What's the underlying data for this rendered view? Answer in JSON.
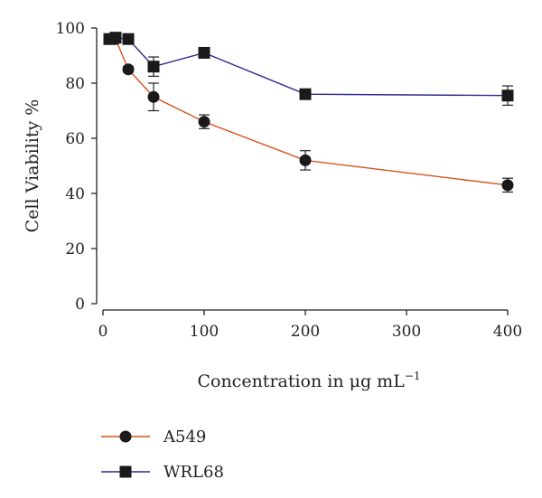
{
  "chart_data": {
    "type": "line",
    "title": "",
    "xlabel": "Concentration in μg mL",
    "xlabel_superscript": "−1",
    "ylabel": "Cell Viability %",
    "xlim": [
      0,
      400
    ],
    "ylim": [
      0,
      100
    ],
    "x_ticks": [
      "0",
      "100",
      "200",
      "300",
      "400"
    ],
    "y_ticks": [
      "0",
      "20",
      "40",
      "60",
      "80",
      "100"
    ],
    "grid": false,
    "legend_position": "bottom-left",
    "series": [
      {
        "name": "A549",
        "color": "#d9531e",
        "marker": "circle",
        "x": [
          6.25,
          12.5,
          25,
          50,
          100,
          200,
          400
        ],
        "y": [
          96,
          96,
          85,
          75,
          66,
          52,
          43
        ],
        "error": [
          1,
          1,
          1,
          5,
          2.5,
          3.5,
          2.5
        ]
      },
      {
        "name": "WRL68",
        "color": "#2b2b8c",
        "marker": "square",
        "x": [
          6.25,
          12.5,
          25,
          50,
          100,
          200,
          400
        ],
        "y": [
          96,
          96.5,
          96,
          86,
          91,
          76,
          75.5
        ],
        "error": [
          1,
          1,
          1,
          3.5,
          1.5,
          1,
          3.5
        ]
      }
    ]
  }
}
